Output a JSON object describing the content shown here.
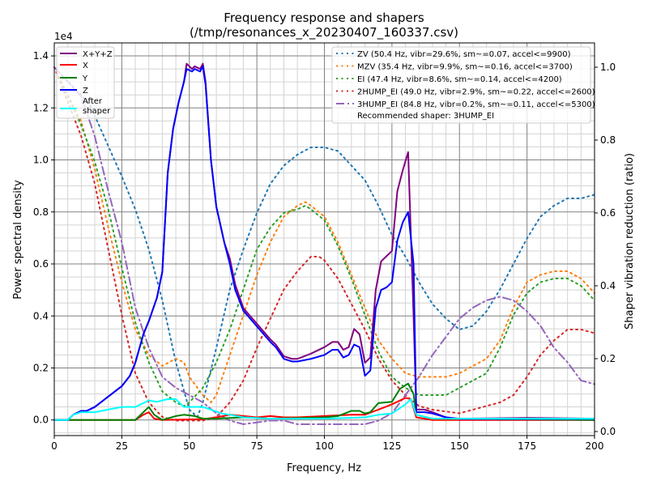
{
  "chart_data": {
    "type": "line",
    "title": "Frequency response and shapers",
    "subtitle": "(/tmp/resonances_x_20230407_160337.csv)",
    "xlabel": "Frequency, Hz",
    "ylabel": "Power spectral density",
    "y2label": "Shaper vibration reduction (ratio)",
    "y_offset_label": "1e4",
    "xlim": [
      0,
      200
    ],
    "ylim": [
      -0.06,
      1.45
    ],
    "y2lim": [
      -0.0111,
      1.0667
    ],
    "xticks": [
      "0",
      "25",
      "50",
      "75",
      "100",
      "125",
      "150",
      "175",
      "200"
    ],
    "yticks": [
      "0.0",
      "0.2",
      "0.4",
      "0.6",
      "0.8",
      "1.0",
      "1.2",
      "1.4"
    ],
    "y2ticks": [
      "0.0",
      "0.2",
      "0.4",
      "0.6",
      "0.8",
      "1.0"
    ],
    "grid": true,
    "psd_series": [
      {
        "name": "X+Y+Z",
        "color": "#800080",
        "x": [
          0,
          5,
          7,
          10,
          12,
          15,
          20,
          25,
          28,
          30,
          33,
          35,
          38,
          40,
          42,
          44,
          46,
          48,
          49,
          51,
          52,
          54,
          55,
          56,
          58,
          60,
          63,
          65,
          67,
          70,
          75,
          80,
          82,
          85,
          88,
          90,
          95,
          100,
          103,
          105,
          107,
          109,
          111,
          113,
          115,
          117,
          119,
          121,
          123,
          125,
          127,
          129,
          131,
          133,
          134,
          137,
          140,
          145,
          150,
          175,
          200
        ],
        "y": [
          0,
          0,
          0.02,
          0.035,
          0.035,
          0.05,
          0.09,
          0.13,
          0.17,
          0.22,
          0.33,
          0.38,
          0.47,
          0.57,
          0.95,
          1.12,
          1.22,
          1.3,
          1.37,
          1.35,
          1.36,
          1.35,
          1.37,
          1.3,
          1.0,
          0.82,
          0.68,
          0.62,
          0.52,
          0.43,
          0.37,
          0.31,
          0.29,
          0.245,
          0.235,
          0.235,
          0.255,
          0.28,
          0.3,
          0.3,
          0.27,
          0.28,
          0.35,
          0.33,
          0.22,
          0.24,
          0.5,
          0.61,
          0.63,
          0.65,
          0.88,
          0.96,
          1.03,
          0.4,
          0.04,
          0.04,
          0.03,
          0.01,
          0.005,
          0.008,
          0.005
        ]
      },
      {
        "name": "X",
        "color": "#ff0000",
        "x": [
          0,
          30,
          33,
          35,
          37,
          40,
          55,
          60,
          65,
          70,
          75,
          80,
          85,
          90,
          100,
          110,
          115,
          120,
          125,
          130,
          132,
          134,
          140,
          200
        ],
        "y": [
          0,
          0,
          0.02,
          0.03,
          0.005,
          0,
          0.003,
          0.01,
          0.02,
          0.015,
          0.01,
          0.015,
          0.01,
          0.01,
          0.015,
          0.02,
          0.02,
          0.04,
          0.06,
          0.085,
          0.08,
          0.01,
          0,
          0
        ]
      },
      {
        "name": "Y",
        "color": "#008000",
        "x": [
          0,
          30,
          33,
          35,
          37,
          40,
          45,
          48,
          52,
          55,
          60,
          70,
          80,
          100,
          105,
          110,
          113,
          115,
          117,
          120,
          125,
          128,
          131,
          133,
          134,
          140,
          200
        ],
        "y": [
          0,
          0,
          0.03,
          0.05,
          0.02,
          0,
          0.015,
          0.02,
          0.015,
          0.005,
          0.005,
          0.01,
          0.005,
          0.01,
          0.015,
          0.035,
          0.035,
          0.025,
          0.03,
          0.065,
          0.07,
          0.12,
          0.14,
          0.1,
          0.02,
          0.005,
          0
        ]
      },
      {
        "name": "Z",
        "color": "#0000ff",
        "x": [
          0,
          5,
          7,
          10,
          12,
          15,
          20,
          25,
          28,
          30,
          33,
          35,
          38,
          40,
          42,
          44,
          46,
          48,
          49,
          51,
          52,
          54,
          55,
          56,
          58,
          60,
          63,
          65,
          67,
          70,
          75,
          80,
          82,
          85,
          88,
          90,
          95,
          100,
          103,
          105,
          107,
          109,
          111,
          113,
          115,
          117,
          119,
          121,
          123,
          125,
          127,
          129,
          131,
          133,
          134,
          137,
          140,
          145,
          150,
          175,
          200
        ],
        "y": [
          0,
          0,
          0.02,
          0.035,
          0.035,
          0.05,
          0.09,
          0.13,
          0.17,
          0.22,
          0.33,
          0.38,
          0.47,
          0.57,
          0.95,
          1.12,
          1.22,
          1.3,
          1.35,
          1.34,
          1.35,
          1.34,
          1.36,
          1.29,
          1.0,
          0.82,
          0.68,
          0.6,
          0.5,
          0.42,
          0.36,
          0.3,
          0.28,
          0.235,
          0.225,
          0.225,
          0.235,
          0.25,
          0.27,
          0.27,
          0.24,
          0.25,
          0.29,
          0.28,
          0.17,
          0.19,
          0.43,
          0.5,
          0.51,
          0.53,
          0.69,
          0.76,
          0.8,
          0.6,
          0.03,
          0.03,
          0.025,
          0.01,
          0.004,
          0.004,
          0.004
        ]
      },
      {
        "name": "After\nshaper",
        "color": "#00ffff",
        "x": [
          0,
          5,
          7,
          10,
          15,
          20,
          25,
          30,
          33,
          35,
          38,
          42,
          45,
          48,
          52,
          55,
          58,
          62,
          65,
          70,
          80,
          100,
          115,
          120,
          125,
          130,
          132,
          134,
          140,
          200
        ],
        "y": [
          0,
          0,
          0.02,
          0.03,
          0.03,
          0.04,
          0.05,
          0.05,
          0.065,
          0.075,
          0.07,
          0.08,
          0.08,
          0.05,
          0.05,
          0.05,
          0.04,
          0.025,
          0.02,
          0.01,
          0.005,
          0.005,
          0.01,
          0.02,
          0.025,
          0.06,
          0.08,
          0.02,
          0.005,
          0.005
        ]
      }
    ],
    "shaper_series": [
      {
        "name": "ZV (50.4 Hz, vibr=29.6%, sm~=0.07, accel<=9900)",
        "color": "#1f77b4",
        "style": "dotted",
        "x": [
          0,
          13,
          25,
          30,
          35,
          40,
          45,
          50,
          53,
          55,
          60,
          65,
          70,
          75,
          80,
          85,
          90,
          95,
          100,
          105,
          110,
          115,
          120,
          125,
          130,
          135,
          140,
          145,
          150,
          155,
          160,
          165,
          170,
          175,
          180,
          185,
          190,
          195,
          200
        ],
        "y": [
          1.0,
          0.9,
          0.7,
          0.61,
          0.5,
          0.36,
          0.19,
          0.06,
          0.04,
          0.08,
          0.23,
          0.39,
          0.5,
          0.6,
          0.68,
          0.73,
          0.76,
          0.78,
          0.78,
          0.77,
          0.73,
          0.69,
          0.62,
          0.54,
          0.48,
          0.41,
          0.35,
          0.31,
          0.28,
          0.29,
          0.33,
          0.39,
          0.46,
          0.53,
          0.59,
          0.62,
          0.64,
          0.64,
          0.65
        ]
      },
      {
        "name": "MZV (35.4 Hz, vibr=9.9%, sm~=0.16, accel<=3700)",
        "color": "#ff7f0e",
        "style": "dotted",
        "x": [
          0,
          10,
          15,
          20,
          25,
          30,
          35,
          40,
          45,
          48,
          50,
          55,
          58,
          60,
          65,
          70,
          75,
          80,
          85,
          90,
          93,
          95,
          100,
          105,
          110,
          115,
          120,
          125,
          130,
          135,
          140,
          145,
          150,
          155,
          160,
          165,
          170,
          175,
          180,
          185,
          190,
          195,
          200
        ],
        "y": [
          1.0,
          0.85,
          0.72,
          0.56,
          0.41,
          0.28,
          0.21,
          0.18,
          0.2,
          0.19,
          0.15,
          0.1,
          0.08,
          0.1,
          0.21,
          0.32,
          0.43,
          0.52,
          0.59,
          0.62,
          0.63,
          0.62,
          0.59,
          0.52,
          0.43,
          0.34,
          0.25,
          0.2,
          0.16,
          0.15,
          0.15,
          0.15,
          0.16,
          0.18,
          0.2,
          0.25,
          0.34,
          0.41,
          0.43,
          0.44,
          0.44,
          0.42,
          0.38
        ]
      },
      {
        "name": "EI (47.4 Hz, vibr=8.6%, sm~=0.14, accel<=4200)",
        "color": "#2ca02c",
        "style": "dotted",
        "x": [
          0,
          10,
          15,
          20,
          25,
          30,
          35,
          40,
          45,
          48,
          50,
          55,
          60,
          65,
          70,
          75,
          80,
          85,
          90,
          93,
          95,
          100,
          105,
          110,
          115,
          120,
          125,
          130,
          135,
          140,
          145,
          150,
          155,
          160,
          165,
          170,
          175,
          180,
          185,
          190,
          195,
          200
        ],
        "y": [
          1.0,
          0.84,
          0.74,
          0.61,
          0.45,
          0.3,
          0.19,
          0.11,
          0.08,
          0.07,
          0.08,
          0.12,
          0.19,
          0.28,
          0.39,
          0.5,
          0.56,
          0.6,
          0.61,
          0.62,
          0.61,
          0.58,
          0.51,
          0.42,
          0.32,
          0.22,
          0.15,
          0.12,
          0.1,
          0.1,
          0.1,
          0.12,
          0.14,
          0.16,
          0.23,
          0.32,
          0.38,
          0.41,
          0.42,
          0.42,
          0.4,
          0.36
        ]
      },
      {
        "name": "2HUMP_EI (49.0 Hz, vibr=2.9%, sm~=0.22, accel<=2600)",
        "color": "#d62728",
        "style": "dotted",
        "x": [
          0,
          10,
          15,
          20,
          25,
          30,
          35,
          40,
          45,
          50,
          55,
          60,
          65,
          70,
          75,
          80,
          85,
          90,
          95,
          98,
          100,
          105,
          110,
          115,
          120,
          125,
          130,
          135,
          140,
          150,
          160,
          165,
          170,
          175,
          180,
          185,
          190,
          195,
          200
        ],
        "y": [
          1.0,
          0.81,
          0.68,
          0.5,
          0.32,
          0.16,
          0.08,
          0.04,
          0.03,
          0.03,
          0.03,
          0.04,
          0.08,
          0.14,
          0.23,
          0.31,
          0.39,
          0.44,
          0.48,
          0.48,
          0.47,
          0.42,
          0.35,
          0.28,
          0.2,
          0.14,
          0.1,
          0.07,
          0.06,
          0.05,
          0.07,
          0.08,
          0.1,
          0.15,
          0.21,
          0.25,
          0.28,
          0.28,
          0.27
        ]
      },
      {
        "name": "3HUMP_EI (84.8 Hz, vibr=0.2%, sm~=0.11, accel<=5300)",
        "color": "#9467bd",
        "style": "dashdot",
        "x": [
          0,
          10,
          15,
          20,
          25,
          30,
          35,
          40,
          45,
          50,
          55,
          60,
          65,
          70,
          80,
          85,
          90,
          95,
          110,
          115,
          120,
          125,
          130,
          135,
          140,
          145,
          150,
          155,
          160,
          165,
          170,
          175,
          180,
          185,
          190,
          195,
          200
        ],
        "y": [
          1.0,
          0.92,
          0.81,
          0.66,
          0.52,
          0.34,
          0.23,
          0.15,
          0.12,
          0.1,
          0.08,
          0.05,
          0.03,
          0.02,
          0.03,
          0.03,
          0.02,
          0.02,
          0.02,
          0.02,
          0.03,
          0.05,
          0.1,
          0.15,
          0.21,
          0.26,
          0.31,
          0.34,
          0.36,
          0.37,
          0.36,
          0.33,
          0.29,
          0.23,
          0.19,
          0.14,
          0.13
        ]
      }
    ],
    "recommended": "Recommended shaper: 3HUMP_EI",
    "legend_placement": [
      "upper-left",
      "upper-right"
    ]
  }
}
